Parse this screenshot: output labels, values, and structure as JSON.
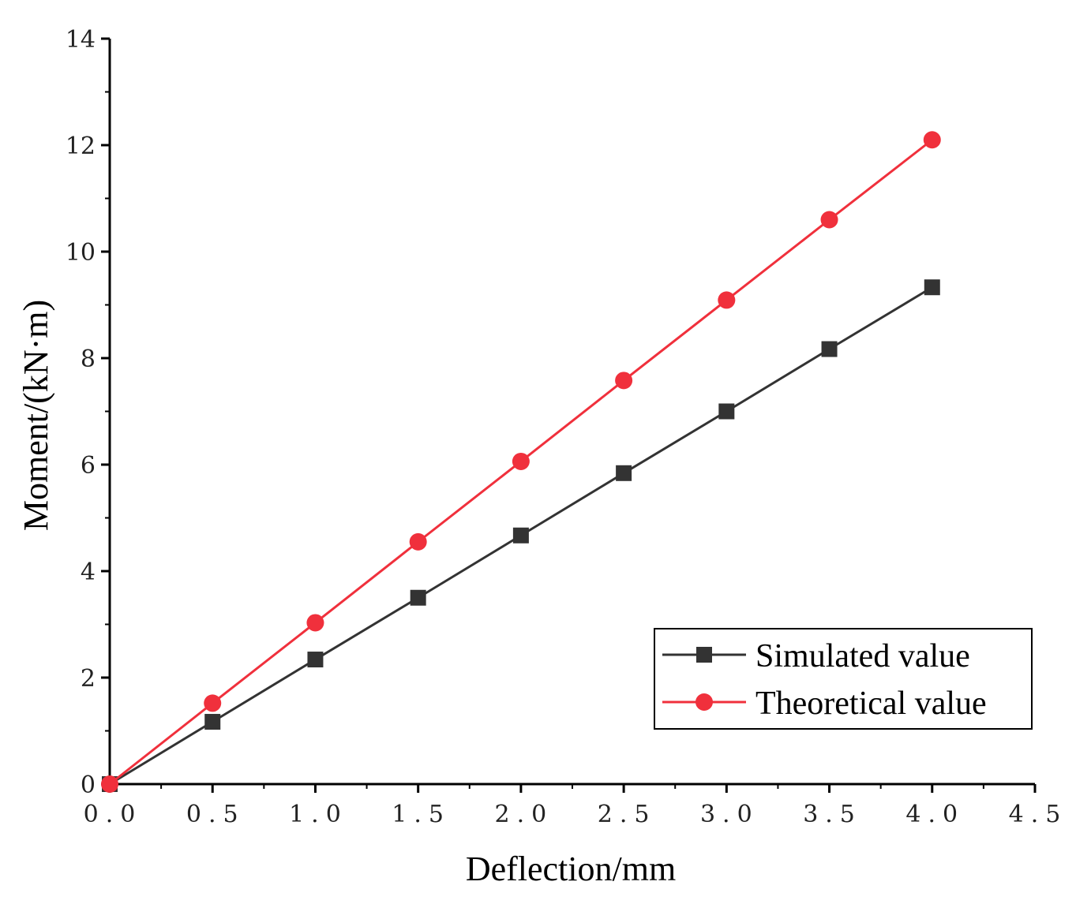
{
  "chart_data": {
    "type": "line",
    "title": "",
    "xlabel": "Deflection/mm",
    "ylabel": "Moment/(kN·m)",
    "xlim": [
      0,
      4.5
    ],
    "ylim": [
      0,
      14
    ],
    "x_ticks": [
      0,
      0.5,
      1.0,
      1.5,
      2.0,
      2.5,
      3.0,
      3.5,
      4.0,
      4.5
    ],
    "x_tick_labels": [
      "0.0",
      "0.5",
      "1.0",
      "1.5",
      "2.0",
      "2.5",
      "3.0",
      "3.5",
      "4.0",
      "4.5"
    ],
    "y_ticks": [
      0,
      2,
      4,
      6,
      8,
      10,
      12,
      14
    ],
    "y_tick_labels": [
      "0",
      "2",
      "4",
      "6",
      "8",
      "10",
      "12",
      "14"
    ],
    "grid": false,
    "legend_position": "bottom-right",
    "x": [
      0,
      0.5,
      1.0,
      1.5,
      2.0,
      2.5,
      3.0,
      3.5,
      4.0
    ],
    "series": [
      {
        "name": "Simulated value",
        "color": "#333333",
        "marker": "square",
        "values": [
          0,
          1.17,
          2.34,
          3.5,
          4.67,
          5.84,
          7.0,
          8.17,
          9.33
        ]
      },
      {
        "name": "Theoretical value",
        "color": "#f0303c",
        "marker": "circle",
        "values": [
          0,
          1.52,
          3.03,
          4.55,
          6.06,
          7.58,
          9.09,
          10.6,
          12.1
        ]
      }
    ]
  }
}
